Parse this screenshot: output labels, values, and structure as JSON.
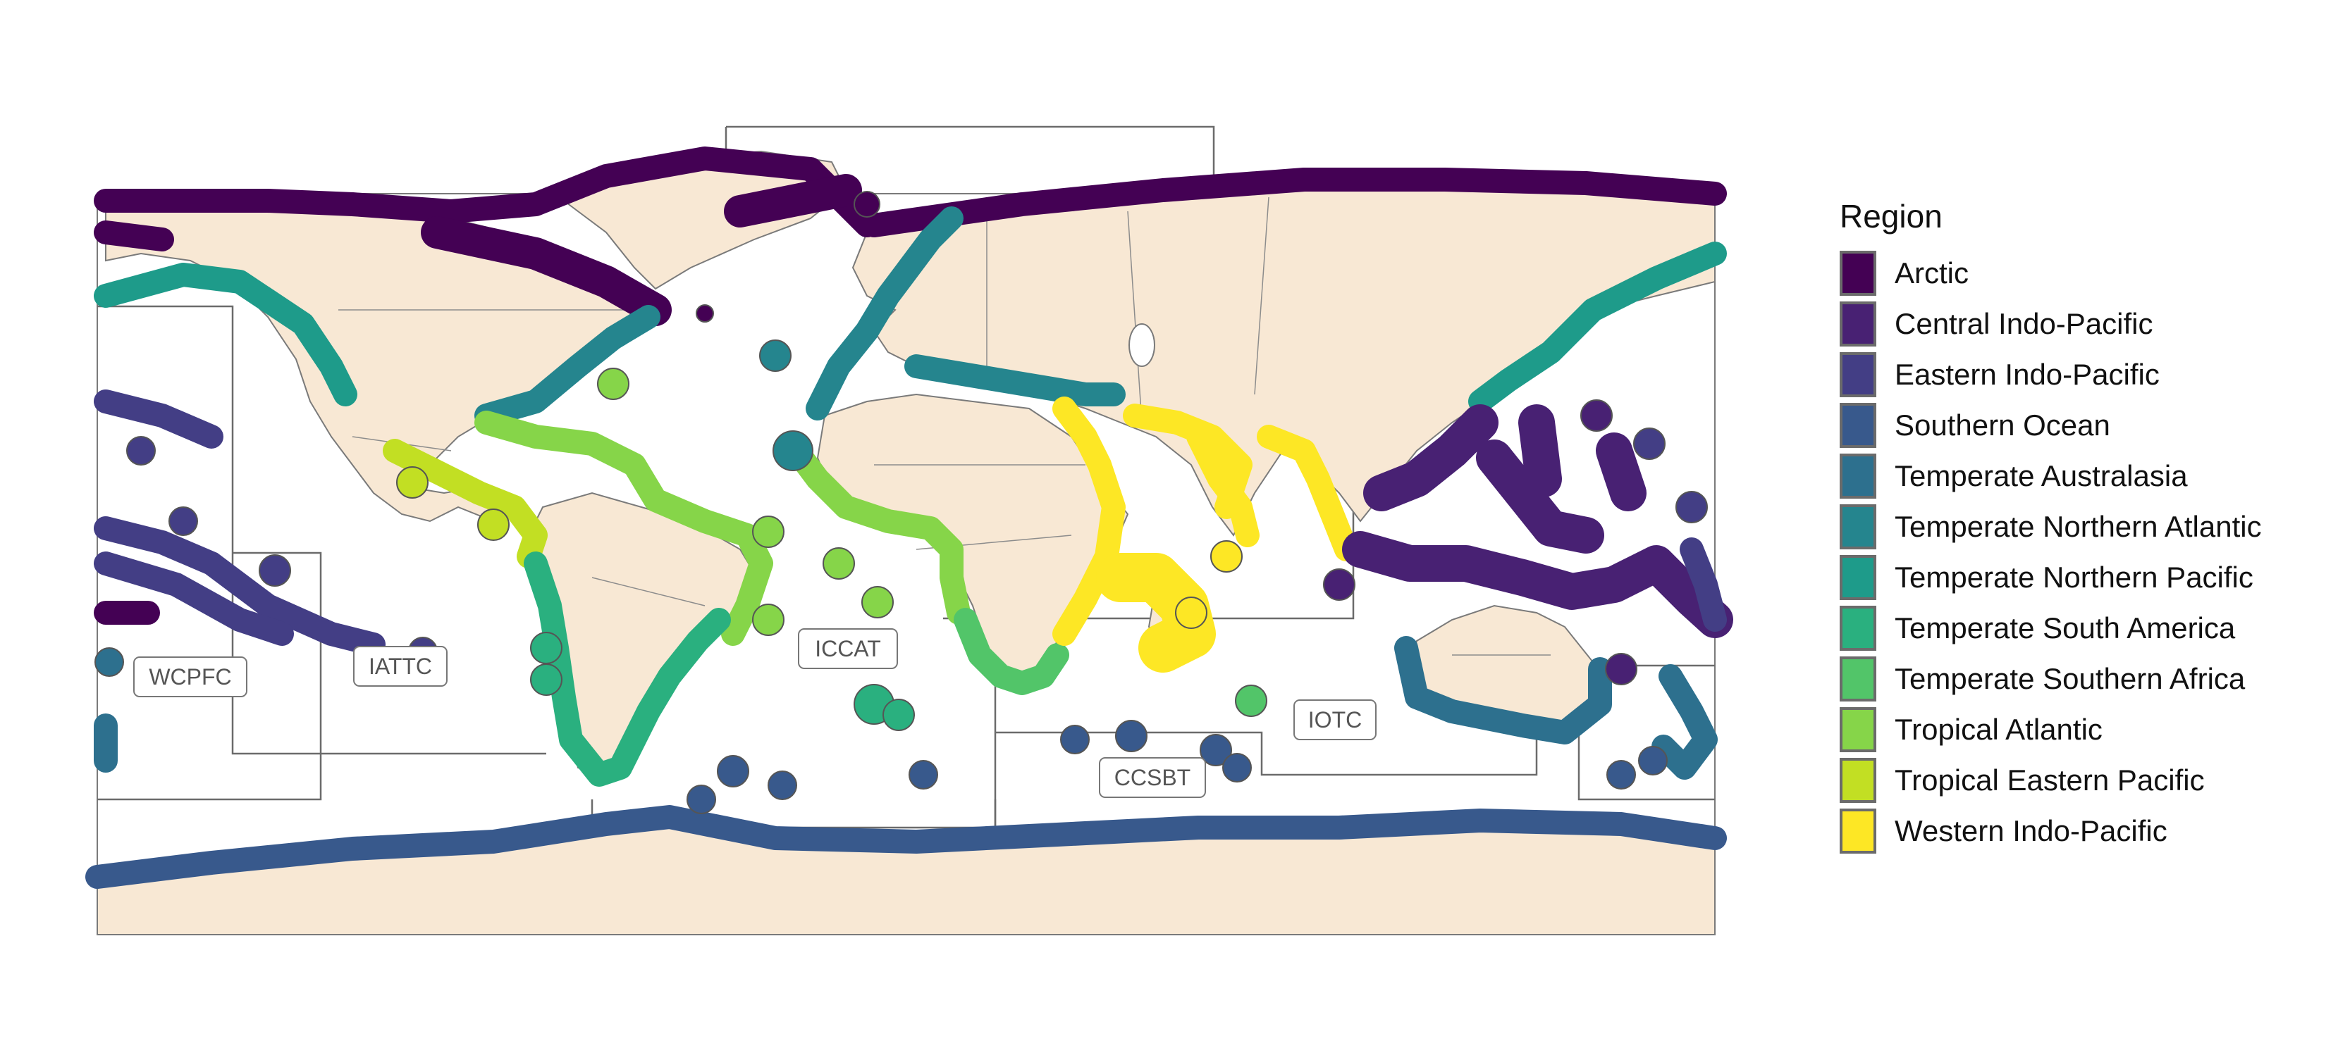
{
  "legend": {
    "title": "Region",
    "items": [
      {
        "label": "Arctic",
        "color": "#440154"
      },
      {
        "label": "Central Indo-Pacific",
        "color": "#482173"
      },
      {
        "label": "Eastern Indo-Pacific",
        "color": "#433e85"
      },
      {
        "label": "Southern Ocean",
        "color": "#38598c"
      },
      {
        "label": "Temperate Australasia",
        "color": "#2d708e"
      },
      {
        "label": "Temperate Northern Atlantic",
        "color": "#25858e"
      },
      {
        "label": "Temperate Northern Pacific",
        "color": "#1e9b8a"
      },
      {
        "label": "Temperate South America",
        "color": "#2ab07f"
      },
      {
        "label": "Temperate Southern Africa",
        "color": "#52c569"
      },
      {
        "label": "Tropical Atlantic",
        "color": "#86d549"
      },
      {
        "label": "Tropical Eastern Pacific",
        "color": "#c2df23"
      },
      {
        "label": "Western Indo-Pacific",
        "color": "#fde725"
      }
    ]
  },
  "rfmo_labels": {
    "wcpfc": "WCPFC",
    "iattc": "IATTC",
    "iccat": "ICCAT",
    "iotc": "IOTC",
    "ccsbt": "CCSBT"
  },
  "colors": {
    "land": "#f8e8d4",
    "border": "#7a7a7a",
    "ocean": "#ffffff"
  }
}
